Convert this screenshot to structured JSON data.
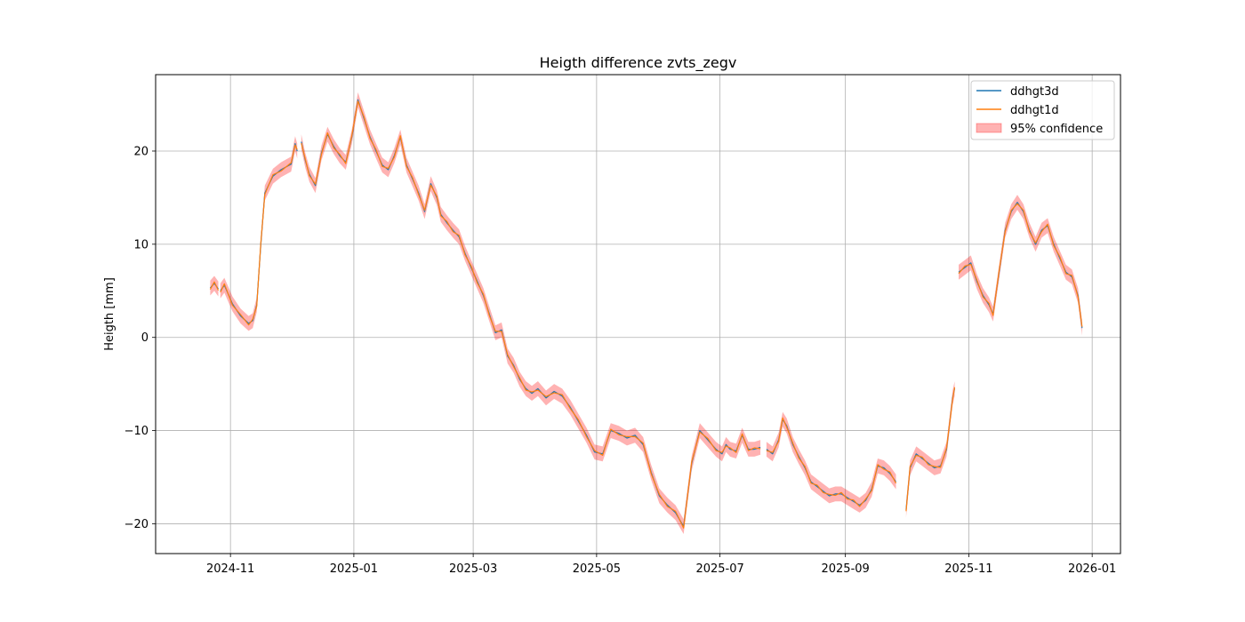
{
  "chart_data": {
    "type": "line",
    "title": "Heigth difference zvts_zegv",
    "xlabel": "",
    "ylabel": "Heigth [mm]",
    "x_type": "date",
    "xlim": [
      "2024-09-25",
      "2026-01-15"
    ],
    "ylim": [
      -23.2,
      28.2
    ],
    "grid": true,
    "legend_position": "top-right",
    "x_ticks": [
      "2024-11",
      "2025-01",
      "2025-03",
      "2025-05",
      "2025-07",
      "2025-09",
      "2025-11",
      "2026-01"
    ],
    "y_ticks": [
      -20,
      -10,
      0,
      10,
      20
    ],
    "series": [
      {
        "name": "ddhgt3d",
        "color": "#1f77b4"
      },
      {
        "name": "ddhgt1d",
        "color": "#ff7f0e"
      },
      {
        "name": "95% confidence",
        "color": "#ff0000",
        "style": "band",
        "half_width": 0.8
      }
    ],
    "segments": [
      {
        "x": [
          "2024-10-22",
          "2024-10-24",
          "2024-10-26"
        ],
        "y": [
          5.3,
          5.8,
          5.2
        ]
      },
      {
        "x": [
          "2024-10-27",
          "2024-10-29",
          "2024-11-02",
          "2024-11-06",
          "2024-11-10",
          "2024-11-12",
          "2024-11-14",
          "2024-11-16",
          "2024-11-18",
          "2024-11-22",
          "2024-11-26",
          "2024-12-01",
          "2024-12-03",
          "2024-12-04"
        ],
        "y": [
          5.0,
          5.6,
          3.6,
          2.3,
          1.5,
          1.8,
          3.5,
          10.0,
          15.5,
          17.3,
          18.0,
          18.6,
          20.8,
          20.0
        ]
      },
      {
        "x": [
          "2024-12-06",
          "2024-12-08",
          "2024-12-10",
          "2024-12-13",
          "2024-12-16",
          "2024-12-19",
          "2024-12-22",
          "2024-12-25",
          "2024-12-28",
          "2024-12-31",
          "2025-01-03",
          "2025-01-06",
          "2025-01-09",
          "2025-01-12",
          "2025-01-15",
          "2025-01-18",
          "2025-01-21",
          "2025-01-24",
          "2025-01-27",
          "2025-01-30",
          "2025-02-02",
          "2025-02-05",
          "2025-02-08",
          "2025-02-11",
          "2025-02-13",
          "2025-02-16",
          "2025-02-19",
          "2025-02-22",
          "2025-02-25",
          "2025-02-28",
          "2025-03-03",
          "2025-03-06",
          "2025-03-09",
          "2025-03-12",
          "2025-03-15",
          "2025-03-18",
          "2025-03-21",
          "2025-03-24",
          "2025-03-27",
          "2025-03-30",
          "2025-04-02",
          "2025-04-06",
          "2025-04-10",
          "2025-04-14",
          "2025-04-18",
          "2025-04-22",
          "2025-04-26",
          "2025-04-30",
          "2025-05-04",
          "2025-05-08",
          "2025-05-12",
          "2025-05-16",
          "2025-05-20",
          "2025-05-24",
          "2025-05-28",
          "2025-06-01",
          "2025-06-05",
          "2025-06-09",
          "2025-06-13",
          "2025-06-17",
          "2025-06-21",
          "2025-06-25",
          "2025-06-29",
          "2025-07-02",
          "2025-07-04",
          "2025-07-06",
          "2025-07-09",
          "2025-07-12",
          "2025-07-15",
          "2025-07-18",
          "2025-07-21"
        ],
        "y": [
          21.0,
          19.0,
          17.5,
          16.3,
          19.8,
          21.8,
          20.5,
          19.5,
          18.8,
          21.5,
          25.5,
          23.5,
          21.5,
          20.0,
          18.5,
          18.0,
          19.5,
          21.5,
          18.5,
          17.0,
          15.5,
          13.5,
          16.5,
          15.0,
          13.2,
          12.3,
          11.5,
          10.8,
          9.0,
          7.5,
          6.0,
          4.5,
          2.5,
          0.5,
          0.8,
          -2.0,
          -3.0,
          -4.5,
          -5.5,
          -6.0,
          -5.5,
          -6.5,
          -5.8,
          -6.3,
          -7.5,
          -9.0,
          -10.5,
          -12.3,
          -12.5,
          -10.0,
          -10.3,
          -10.8,
          -10.5,
          -11.5,
          -14.5,
          -17.0,
          -18.0,
          -18.8,
          -20.3,
          -13.5,
          -10.0,
          -11.0,
          -12.0,
          -12.5,
          -11.5,
          -12.0,
          -12.2,
          -10.5,
          -12.0,
          -12.0,
          -11.8
        ]
      },
      {
        "x": [
          "2025-07-24",
          "2025-07-27",
          "2025-07-30",
          "2025-08-01",
          "2025-08-03",
          "2025-08-06",
          "2025-08-09",
          "2025-08-12",
          "2025-08-15",
          "2025-08-18",
          "2025-08-21",
          "2025-08-24",
          "2025-08-27",
          "2025-08-30",
          "2025-09-02",
          "2025-09-05",
          "2025-09-08",
          "2025-09-11",
          "2025-09-14",
          "2025-09-17",
          "2025-09-20",
          "2025-09-23",
          "2025-09-26"
        ],
        "y": [
          -12.0,
          -12.5,
          -11.0,
          -8.8,
          -9.5,
          -11.5,
          -12.8,
          -14.0,
          -15.5,
          -16.0,
          -16.5,
          -17.0,
          -16.8,
          -16.8,
          -17.2,
          -17.6,
          -18.0,
          -17.5,
          -16.3,
          -13.8,
          -14.0,
          -14.6,
          -15.5
        ]
      },
      {
        "x": [
          "2025-10-01",
          "2025-10-03",
          "2025-10-06",
          "2025-10-09",
          "2025-10-12",
          "2025-10-15",
          "2025-10-18",
          "2025-10-21",
          "2025-10-24",
          "2025-10-25"
        ],
        "y": [
          -18.5,
          -14.0,
          -12.5,
          -13.0,
          -13.5,
          -14.0,
          -13.8,
          -12.0,
          -6.5,
          -5.5
        ]
      },
      {
        "x": [
          "2025-10-27",
          "2025-10-30",
          "2025-11-02",
          "2025-11-05",
          "2025-11-08",
          "2025-11-11",
          "2025-11-13",
          "2025-11-16",
          "2025-11-19",
          "2025-11-22",
          "2025-11-25",
          "2025-11-28",
          "2025-12-01",
          "2025-12-04",
          "2025-12-07",
          "2025-12-10",
          "2025-12-13",
          "2025-12-16",
          "2025-12-19",
          "2025-12-22",
          "2025-12-25",
          "2025-12-27"
        ],
        "y": [
          7.0,
          7.5,
          8.0,
          6.0,
          4.5,
          3.5,
          2.5,
          7.0,
          11.5,
          13.5,
          14.5,
          13.5,
          11.5,
          10.0,
          11.5,
          12.0,
          10.0,
          8.5,
          7.0,
          6.5,
          4.5,
          1.0
        ]
      }
    ]
  }
}
